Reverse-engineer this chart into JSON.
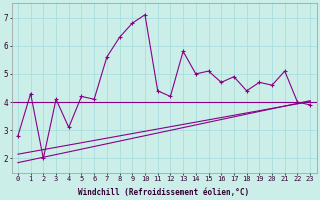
{
  "xlabel": "Windchill (Refroidissement éolien,°C)",
  "bg_color": "#cceee8",
  "grid_color": "#aadddd",
  "line_color": "#880088",
  "x_data": [
    0,
    1,
    2,
    3,
    4,
    5,
    6,
    7,
    8,
    9,
    10,
    11,
    12,
    13,
    14,
    15,
    16,
    17,
    18,
    19,
    20,
    21,
    22,
    23
  ],
  "y_main": [
    2.8,
    4.3,
    2.0,
    4.1,
    3.1,
    4.2,
    4.1,
    5.6,
    6.3,
    6.8,
    7.1,
    4.4,
    4.2,
    5.8,
    5.0,
    5.1,
    4.7,
    4.9,
    4.4,
    4.7,
    4.6,
    5.1,
    4.0,
    3.9
  ],
  "y_hline": 4.0,
  "y_diag1_start": 1.85,
  "y_diag1_end": 4.05,
  "y_diag2_start": 2.15,
  "y_diag2_end": 4.02,
  "xlim": [
    -0.5,
    23.5
  ],
  "ylim": [
    1.5,
    7.5
  ],
  "yticks": [
    2,
    3,
    4,
    5,
    6,
    7
  ],
  "tick_fontsize": 5.0,
  "xlabel_fontsize": 5.5
}
